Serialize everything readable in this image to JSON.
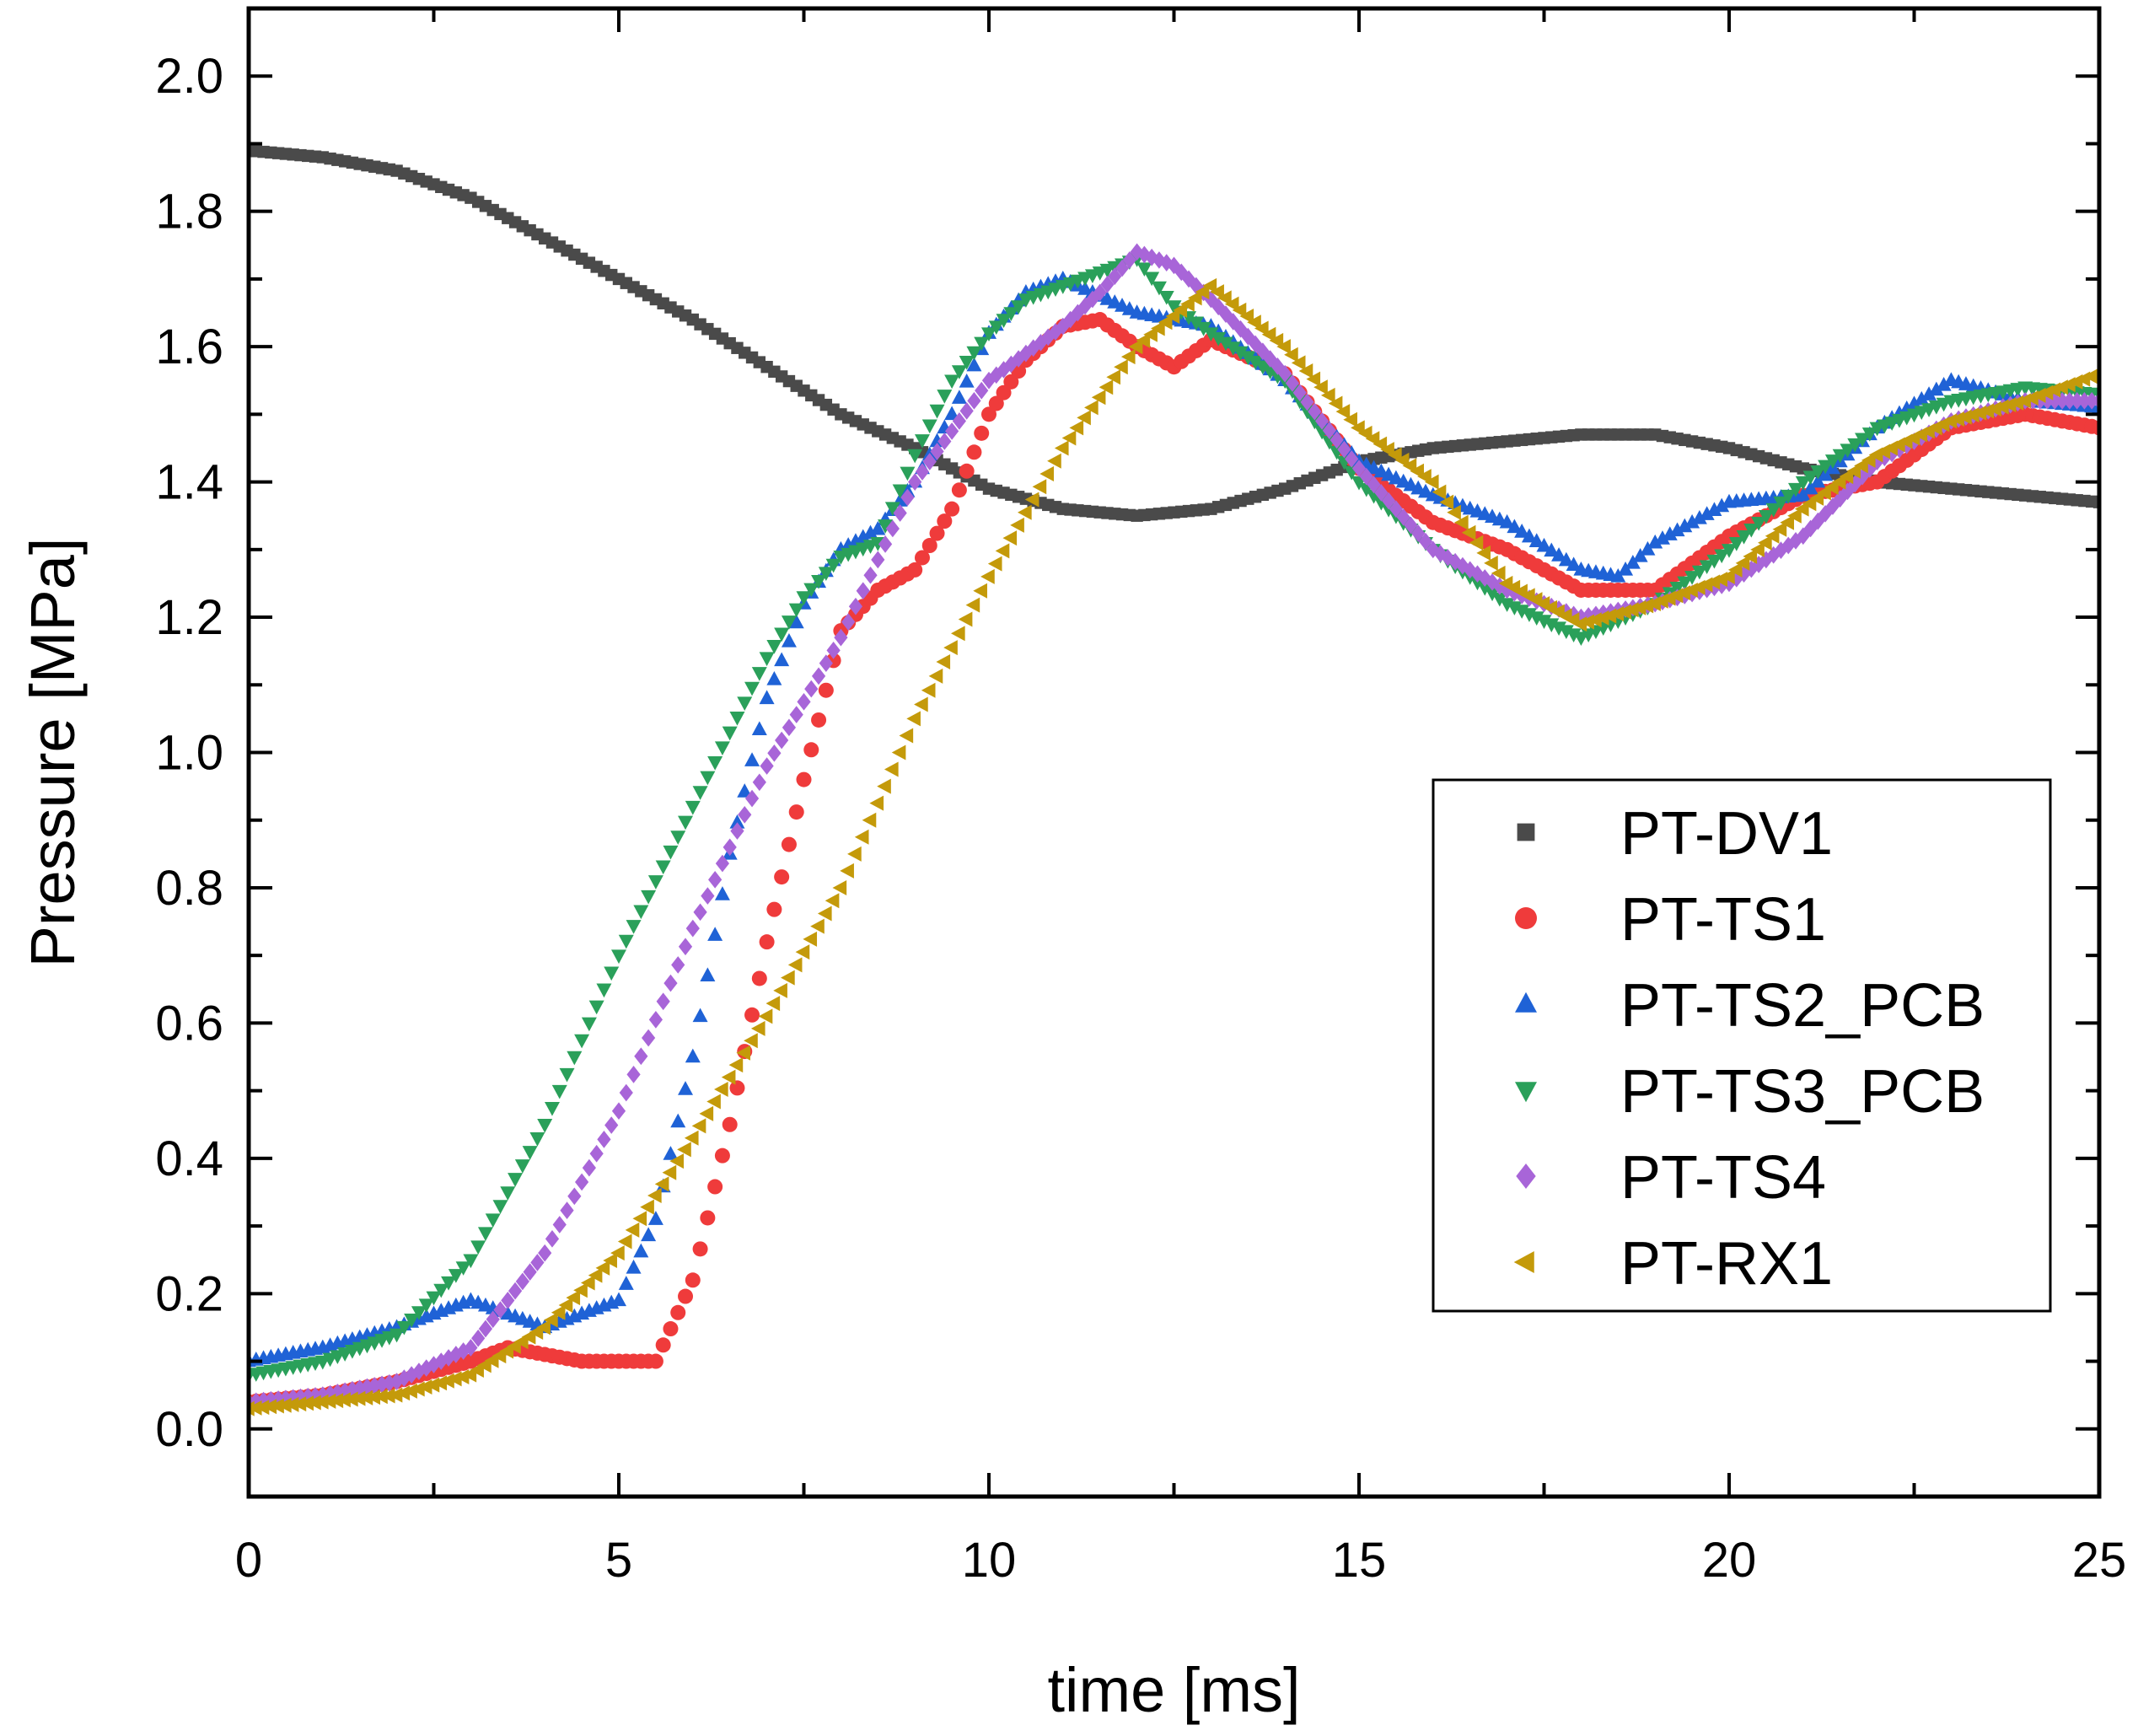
{
  "chart_data": {
    "type": "scatter",
    "title": "",
    "xlabel": "time [ms]",
    "ylabel": "Pressure [MPa]",
    "xlim": [
      0,
      25
    ],
    "ylim": [
      -0.1,
      2.1
    ],
    "x_ticks": [
      0,
      5,
      10,
      15,
      20,
      25
    ],
    "x_tick_labels": [
      "0",
      "5",
      "10",
      "15",
      "20",
      "25"
    ],
    "y_ticks": [
      0.0,
      0.2,
      0.4,
      0.6,
      0.8,
      1.0,
      1.2,
      1.4,
      1.6,
      1.8,
      2.0
    ],
    "y_tick_labels": [
      "0.0",
      "0.2",
      "0.4",
      "0.6",
      "0.8",
      "1.0",
      "1.2",
      "1.4",
      "1.6",
      "1.8",
      "2.0"
    ],
    "grid": false,
    "legend_position": "center-right",
    "series": [
      {
        "name": "PT-DV1",
        "marker": "square",
        "color": "#4a4a4a",
        "points": [
          [
            0,
            1.89
          ],
          [
            1,
            1.88
          ],
          [
            2,
            1.86
          ],
          [
            3,
            1.82
          ],
          [
            4,
            1.76
          ],
          [
            5,
            1.7
          ],
          [
            6,
            1.64
          ],
          [
            7,
            1.57
          ],
          [
            8,
            1.5
          ],
          [
            9,
            1.45
          ],
          [
            10,
            1.39
          ],
          [
            11,
            1.36
          ],
          [
            12,
            1.35
          ],
          [
            13,
            1.36
          ],
          [
            14,
            1.39
          ],
          [
            15,
            1.43
          ],
          [
            16,
            1.45
          ],
          [
            17,
            1.46
          ],
          [
            18,
            1.47
          ],
          [
            19,
            1.47
          ],
          [
            20,
            1.45
          ],
          [
            21,
            1.42
          ],
          [
            22,
            1.4
          ],
          [
            23,
            1.39
          ],
          [
            24,
            1.38
          ],
          [
            25,
            1.37
          ]
        ]
      },
      {
        "name": "PT-TS1",
        "marker": "circle",
        "color": "#ef3b3b",
        "points": [
          [
            0,
            0.04
          ],
          [
            1,
            0.05
          ],
          [
            2,
            0.07
          ],
          [
            3,
            0.1
          ],
          [
            3.5,
            0.12
          ],
          [
            4,
            0.11
          ],
          [
            4.5,
            0.1
          ],
          [
            5,
            0.1
          ],
          [
            5.5,
            0.1
          ],
          [
            6,
            0.22
          ],
          [
            6.5,
            0.45
          ],
          [
            7,
            0.72
          ],
          [
            7.5,
            0.96
          ],
          [
            8,
            1.18
          ],
          [
            8.5,
            1.24
          ],
          [
            9,
            1.27
          ],
          [
            9.5,
            1.36
          ],
          [
            10,
            1.5
          ],
          [
            10.5,
            1.58
          ],
          [
            11,
            1.63
          ],
          [
            11.5,
            1.64
          ],
          [
            12,
            1.6
          ],
          [
            12.5,
            1.57
          ],
          [
            13,
            1.61
          ],
          [
            14,
            1.56
          ],
          [
            15,
            1.42
          ],
          [
            16,
            1.34
          ],
          [
            17,
            1.3
          ],
          [
            18,
            1.24
          ],
          [
            19,
            1.24
          ],
          [
            20,
            1.32
          ],
          [
            21,
            1.38
          ],
          [
            22,
            1.4
          ],
          [
            23,
            1.48
          ],
          [
            24,
            1.5
          ],
          [
            25,
            1.48
          ]
        ]
      },
      {
        "name": "PT-TS2_PCB",
        "marker": "triangle-up",
        "color": "#1f62d6",
        "points": [
          [
            0,
            0.1
          ],
          [
            1,
            0.12
          ],
          [
            2,
            0.15
          ],
          [
            3,
            0.19
          ],
          [
            3.5,
            0.17
          ],
          [
            4,
            0.15
          ],
          [
            5,
            0.19
          ],
          [
            5.5,
            0.31
          ],
          [
            6,
            0.55
          ],
          [
            6.5,
            0.85
          ],
          [
            7,
            1.08
          ],
          [
            7.5,
            1.22
          ],
          [
            8,
            1.3
          ],
          [
            8.5,
            1.33
          ],
          [
            9,
            1.4
          ],
          [
            9.5,
            1.5
          ],
          [
            10,
            1.62
          ],
          [
            10.5,
            1.68
          ],
          [
            11,
            1.7
          ],
          [
            12,
            1.65
          ],
          [
            13,
            1.63
          ],
          [
            14,
            1.55
          ],
          [
            15,
            1.43
          ],
          [
            16,
            1.38
          ],
          [
            17,
            1.34
          ],
          [
            18,
            1.27
          ],
          [
            18.5,
            1.26
          ],
          [
            19,
            1.31
          ],
          [
            20,
            1.37
          ],
          [
            21,
            1.38
          ],
          [
            22,
            1.48
          ],
          [
            23,
            1.55
          ],
          [
            24,
            1.52
          ],
          [
            25,
            1.51
          ]
        ]
      },
      {
        "name": "PT-TS3_PCB",
        "marker": "triangle-down",
        "color": "#2aa05a",
        "points": [
          [
            0,
            0.08
          ],
          [
            1,
            0.1
          ],
          [
            2,
            0.14
          ],
          [
            3,
            0.25
          ],
          [
            4,
            0.45
          ],
          [
            5,
            0.7
          ],
          [
            6,
            0.92
          ],
          [
            7,
            1.14
          ],
          [
            7.5,
            1.23
          ],
          [
            8,
            1.29
          ],
          [
            8.5,
            1.31
          ],
          [
            9,
            1.44
          ],
          [
            9.5,
            1.55
          ],
          [
            10,
            1.62
          ],
          [
            10.5,
            1.67
          ],
          [
            11,
            1.69
          ],
          [
            11.5,
            1.71
          ],
          [
            12,
            1.73
          ],
          [
            12.5,
            1.66
          ],
          [
            13,
            1.62
          ],
          [
            14,
            1.55
          ],
          [
            15,
            1.4
          ],
          [
            16,
            1.3
          ],
          [
            17,
            1.22
          ],
          [
            18,
            1.17
          ],
          [
            19,
            1.22
          ],
          [
            20,
            1.3
          ],
          [
            21,
            1.4
          ],
          [
            22,
            1.48
          ],
          [
            23,
            1.52
          ],
          [
            24,
            1.54
          ],
          [
            25,
            1.53
          ]
        ]
      },
      {
        "name": "PT-TS4",
        "marker": "diamond",
        "color": "#a865d8",
        "points": [
          [
            0,
            0.04
          ],
          [
            1,
            0.05
          ],
          [
            2,
            0.07
          ],
          [
            3,
            0.12
          ],
          [
            4,
            0.26
          ],
          [
            5,
            0.47
          ],
          [
            6,
            0.74
          ],
          [
            7,
            0.98
          ],
          [
            8,
            1.17
          ],
          [
            9,
            1.4
          ],
          [
            10,
            1.55
          ],
          [
            11,
            1.63
          ],
          [
            11.5,
            1.68
          ],
          [
            12,
            1.74
          ],
          [
            12.5,
            1.72
          ],
          [
            13,
            1.67
          ],
          [
            14,
            1.56
          ],
          [
            15,
            1.42
          ],
          [
            16,
            1.3
          ],
          [
            17,
            1.24
          ],
          [
            18,
            1.2
          ],
          [
            19,
            1.22
          ],
          [
            20,
            1.25
          ],
          [
            21,
            1.32
          ],
          [
            22,
            1.43
          ],
          [
            23,
            1.49
          ],
          [
            24,
            1.52
          ],
          [
            25,
            1.52
          ]
        ]
      },
      {
        "name": "PT-RX1",
        "marker": "triangle-left",
        "color": "#c49a0a",
        "points": [
          [
            0,
            0.03
          ],
          [
            1,
            0.04
          ],
          [
            2,
            0.05
          ],
          [
            3,
            0.08
          ],
          [
            4,
            0.15
          ],
          [
            5,
            0.26
          ],
          [
            6,
            0.43
          ],
          [
            7,
            0.61
          ],
          [
            8,
            0.8
          ],
          [
            9,
            1.05
          ],
          [
            10,
            1.26
          ],
          [
            11,
            1.45
          ],
          [
            12,
            1.6
          ],
          [
            13,
            1.69
          ],
          [
            14,
            1.6
          ],
          [
            15,
            1.48
          ],
          [
            16,
            1.4
          ],
          [
            17,
            1.25
          ],
          [
            18,
            1.19
          ],
          [
            19,
            1.22
          ],
          [
            20,
            1.26
          ],
          [
            21,
            1.36
          ],
          [
            22,
            1.44
          ],
          [
            23,
            1.49
          ],
          [
            24,
            1.52
          ],
          [
            25,
            1.56
          ]
        ]
      }
    ]
  }
}
